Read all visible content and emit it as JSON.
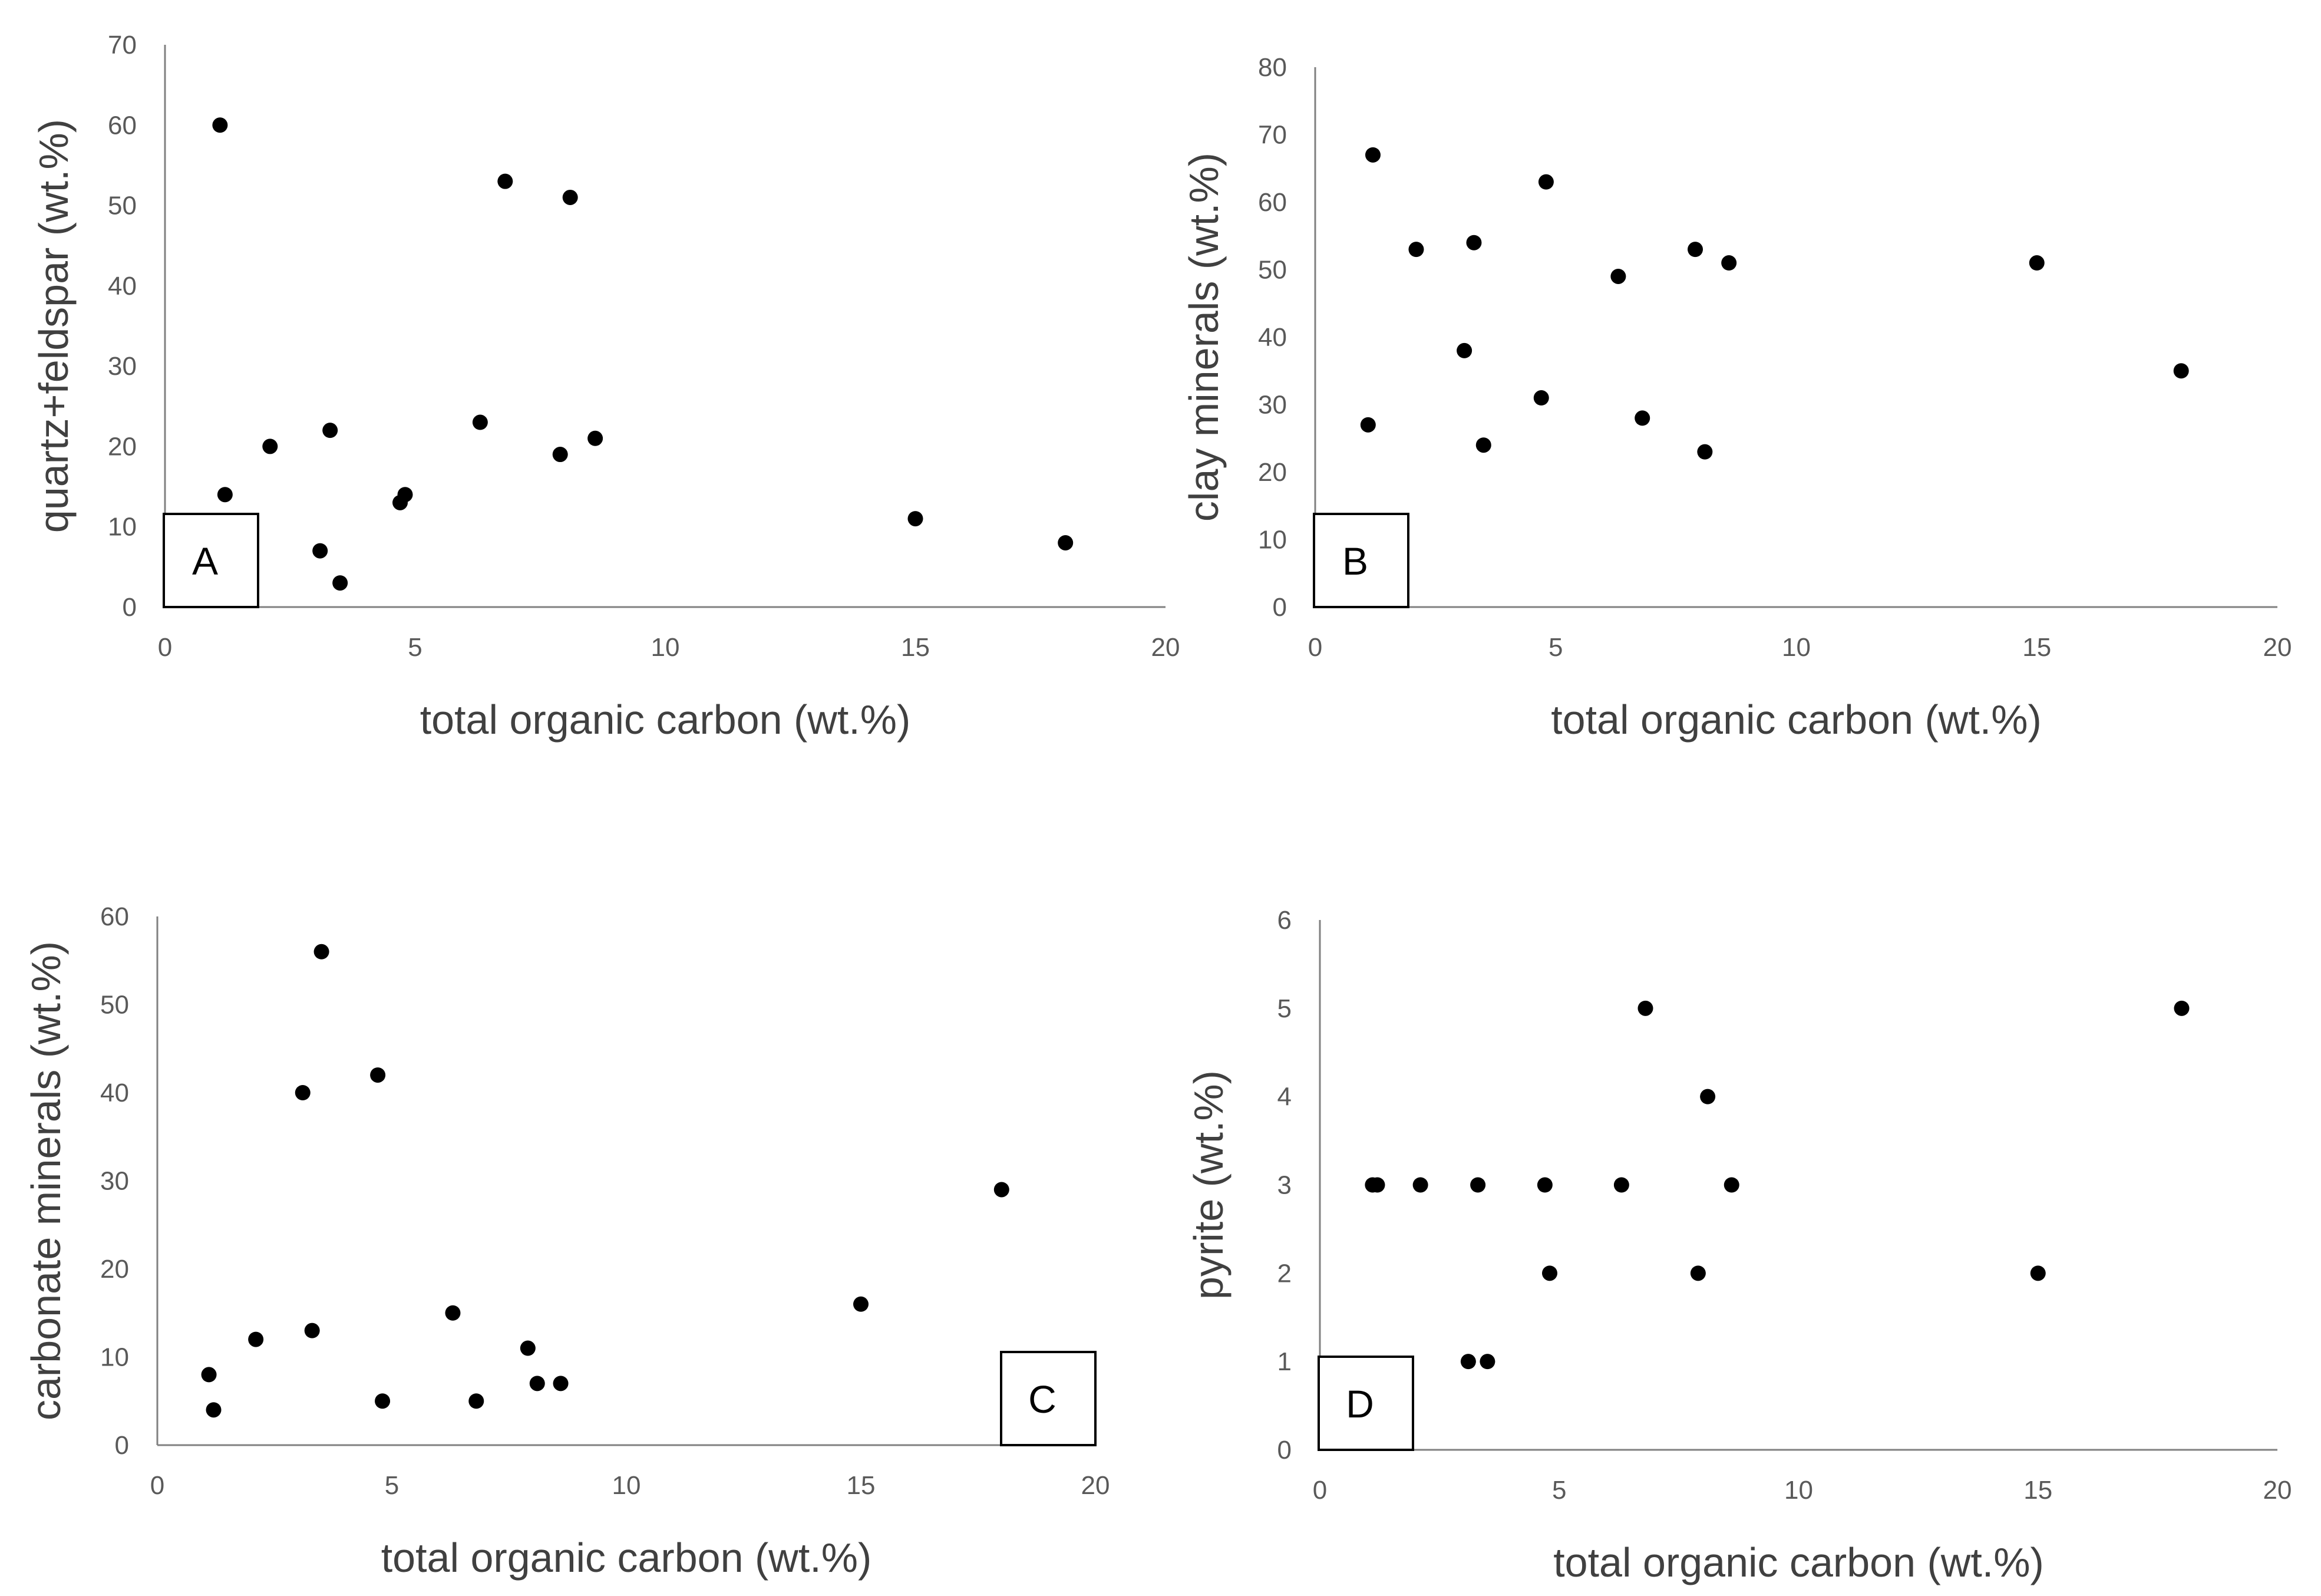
{
  "chart_data": [
    {
      "id": "A",
      "type": "scatter",
      "panel_label": "A",
      "xlabel": "total organic carbon (wt.%)",
      "ylabel": "quartz+feldspar (wt.%)",
      "xlim": [
        0,
        20
      ],
      "ylim": [
        0,
        70
      ],
      "xticks": [
        0,
        5,
        10,
        15,
        20
      ],
      "yticks": [
        0,
        10,
        20,
        30,
        40,
        50,
        60,
        70
      ],
      "grid": false,
      "legend": "none",
      "x": [
        1.1,
        1.2,
        2.1,
        3.1,
        3.3,
        3.5,
        4.7,
        4.8,
        6.3,
        6.8,
        7.9,
        8.1,
        8.6,
        15.0,
        18.0
      ],
      "y": [
        60,
        14,
        20,
        7,
        22,
        3,
        13,
        14,
        23,
        53,
        19,
        51,
        21,
        11,
        8
      ]
    },
    {
      "id": "B",
      "type": "scatter",
      "panel_label": "B",
      "xlabel": "total organic carbon (wt.%)",
      "ylabel": "clay minerals (wt.%)",
      "xlim": [
        0,
        20
      ],
      "ylim": [
        0,
        80
      ],
      "xticks": [
        0,
        5,
        10,
        15,
        20
      ],
      "yticks": [
        0,
        10,
        20,
        30,
        40,
        50,
        60,
        70,
        80
      ],
      "grid": false,
      "legend": "none",
      "x": [
        1.1,
        1.2,
        2.1,
        3.1,
        3.3,
        3.5,
        4.7,
        4.8,
        6.3,
        6.8,
        7.9,
        8.1,
        8.6,
        15.0,
        18.0
      ],
      "y": [
        27,
        67,
        53,
        38,
        54,
        24,
        31,
        63,
        49,
        28,
        53,
        23,
        51,
        51,
        35
      ]
    },
    {
      "id": "C",
      "type": "scatter",
      "panel_label": "C",
      "xlabel": "total organic carbon (wt.%)",
      "ylabel": "carbonate minerals (wt.%)",
      "xlim": [
        0,
        20
      ],
      "ylim": [
        0,
        60
      ],
      "xticks": [
        0,
        5,
        10,
        15,
        20
      ],
      "yticks": [
        0,
        10,
        20,
        30,
        40,
        50,
        60
      ],
      "grid": false,
      "legend": "none",
      "x": [
        1.1,
        1.2,
        2.1,
        3.1,
        3.3,
        3.5,
        4.7,
        4.8,
        6.3,
        6.8,
        7.9,
        8.1,
        8.6,
        15.0,
        18.0
      ],
      "y": [
        8,
        4,
        12,
        40,
        13,
        56,
        42,
        5,
        15,
        5,
        11,
        7,
        7,
        16,
        29
      ]
    },
    {
      "id": "D",
      "type": "scatter",
      "panel_label": "D",
      "xlabel": "total organic carbon (wt.%)",
      "ylabel": "pyrite (wt.%)",
      "xlim": [
        0,
        20
      ],
      "ylim": [
        0,
        6
      ],
      "xticks": [
        0,
        5,
        10,
        15,
        20
      ],
      "yticks": [
        0,
        1,
        2,
        3,
        4,
        5,
        6
      ],
      "grid": false,
      "legend": "none",
      "x": [
        1.1,
        1.2,
        2.1,
        3.1,
        3.3,
        3.5,
        4.7,
        4.8,
        6.3,
        6.8,
        7.9,
        8.1,
        8.6,
        15.0,
        18.0
      ],
      "y": [
        3,
        3,
        3,
        1,
        3,
        1,
        3,
        2,
        3,
        5,
        2,
        4,
        3,
        2,
        5
      ]
    }
  ]
}
